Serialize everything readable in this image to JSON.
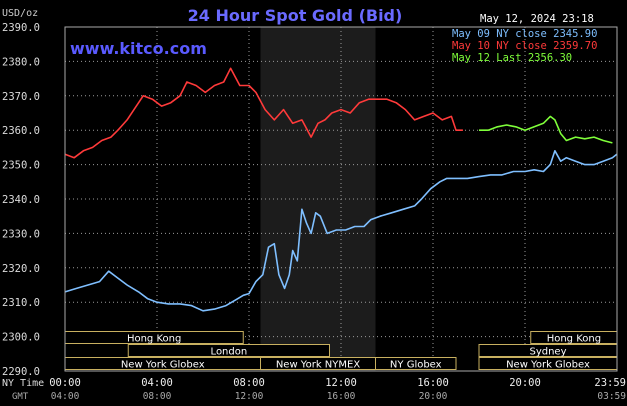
{
  "header": {
    "title": "24 Hour Spot Gold (Bid)",
    "unit": "USD/oz",
    "timestamp": "May 12, 2024 23:18",
    "brand": "www.kitco.com"
  },
  "legend": [
    {
      "label": "May 09 NY close 2345.90",
      "color": "#7fbfff"
    },
    {
      "label": "May 10 NY close 2359.70",
      "color": "#ff3a3a"
    },
    {
      "label": "May 12 Last 2356.30",
      "color": "#7fff3a"
    }
  ],
  "axes": {
    "y_ticks": [
      "2390.0",
      "2380.0",
      "2370.0",
      "2360.0",
      "2350.0",
      "2340.0",
      "2330.0",
      "2320.0",
      "2310.0",
      "2300.0",
      "2290.0"
    ],
    "x_row_label_1": "NY Time",
    "x_row_label_2": "GMT",
    "ny_ticks": [
      "00:00",
      "04:00",
      "08:00",
      "12:00",
      "16:00",
      "20:00",
      "23:59"
    ],
    "gmt_ticks": [
      "04:00",
      "08:00",
      "12:00",
      "16:00",
      "20:00",
      "03:59"
    ]
  },
  "sessions": [
    {
      "name": "Hong Kong",
      "start": 0,
      "end": 7.75,
      "row": 0
    },
    {
      "name": "Hong Kong",
      "start": 20.25,
      "end": 24,
      "row": 0
    },
    {
      "name": "London",
      "start": 2.75,
      "end": 11.5,
      "row": 1
    },
    {
      "name": "Sydney",
      "start": 18,
      "end": 24,
      "row": 1
    },
    {
      "name": "New York Globex",
      "start": 0,
      "end": 8.5,
      "row": 2
    },
    {
      "name": "New York NYMEX",
      "start": 8.5,
      "end": 13.5,
      "row": 2
    },
    {
      "name": "NY Globex",
      "start": 13.5,
      "end": 17,
      "row": 2
    },
    {
      "name": "New York Globex",
      "start": 18,
      "end": 24,
      "row": 2
    }
  ],
  "chart_data": {
    "type": "line",
    "xlabel": "NY Time",
    "ylabel": "USD/oz",
    "xlim": [
      0,
      24
    ],
    "ylim": [
      2290,
      2390
    ],
    "grid": true,
    "legend_position": "top-right",
    "shaded_region": [
      8.5,
      13.5
    ],
    "series": [
      {
        "name": "May 09 NY close 2345.90",
        "color": "#7fbfff",
        "x": [
          0,
          0.5,
          1,
          1.5,
          1.9,
          2.3,
          2.7,
          3.2,
          3.6,
          4,
          4.5,
          5,
          5.5,
          6,
          6.5,
          7,
          7.5,
          7.75,
          8,
          8.3,
          8.6,
          8.85,
          9.1,
          9.3,
          9.55,
          9.75,
          9.9,
          10.1,
          10.3,
          10.5,
          10.7,
          10.9,
          11.1,
          11.4,
          11.8,
          12.2,
          12.6,
          13,
          13.3,
          13.7,
          14.2,
          14.7,
          15.2,
          15.5,
          15.9,
          16.3,
          16.6,
          17,
          17.5,
          18,
          18.5,
          19,
          19.5,
          20,
          20.4,
          20.8,
          21.1,
          21.3,
          21.55,
          21.8,
          22.2,
          22.6,
          23,
          23.4,
          23.8,
          23.99
        ],
        "y": [
          2313,
          2314,
          2315,
          2316,
          2319,
          2317,
          2315,
          2313,
          2311,
          2310,
          2309.5,
          2309.5,
          2309,
          2307.5,
          2308,
          2309,
          2311,
          2312,
          2312.5,
          2316,
          2318,
          2326,
          2327,
          2318,
          2314,
          2318,
          2325,
          2322,
          2337,
          2333,
          2330,
          2336,
          2335,
          2330,
          2331,
          2331,
          2332,
          2332,
          2334,
          2335,
          2336,
          2337,
          2338,
          2340,
          2343,
          2345,
          2346,
          2346,
          2346,
          2346.5,
          2347,
          2347,
          2348,
          2348,
          2348.5,
          2348,
          2350,
          2354,
          2351,
          2352,
          2351,
          2350,
          2350,
          2351,
          2352,
          2353
        ]
      },
      {
        "name": "May 10 NY close 2359.70",
        "color": "#ff3a3a",
        "x": [
          0,
          0.4,
          0.8,
          1.2,
          1.6,
          2,
          2.3,
          2.7,
          3,
          3.4,
          3.8,
          4.2,
          4.6,
          5,
          5.3,
          5.7,
          6.1,
          6.5,
          6.9,
          7.2,
          7.6,
          8,
          8.3,
          8.7,
          9.1,
          9.5,
          9.9,
          10.3,
          10.7,
          11,
          11.3,
          11.6,
          12,
          12.4,
          12.8,
          13.2,
          13.6,
          14,
          14.4,
          14.8,
          15.2,
          15.6,
          16,
          16.4,
          16.8,
          17,
          17.3
        ],
        "y": [
          2353,
          2352,
          2354,
          2355,
          2357,
          2358,
          2360,
          2363,
          2366,
          2370,
          2369,
          2367,
          2368,
          2370,
          2374,
          2373,
          2371,
          2373,
          2374,
          2378,
          2373,
          2373,
          2371,
          2366,
          2363,
          2366,
          2362,
          2363,
          2358,
          2362,
          2363,
          2365,
          2366,
          2365,
          2368,
          2369,
          2369,
          2369,
          2368,
          2366,
          2363,
          2364,
          2365,
          2363,
          2364,
          2360,
          2360
        ]
      },
      {
        "name": "May 12 Last 2356.30",
        "color": "#7fff3a",
        "x": [
          18,
          18.4,
          18.8,
          19.2,
          19.6,
          20,
          20.4,
          20.8,
          21.1,
          21.3,
          21.55,
          21.8,
          22.2,
          22.6,
          23,
          23.4,
          23.8
        ],
        "y": [
          2360,
          2360,
          2361,
          2361.5,
          2361,
          2360,
          2361,
          2362,
          2364,
          2363,
          2359,
          2357,
          2358,
          2357.5,
          2358,
          2357,
          2356.3
        ]
      }
    ]
  }
}
